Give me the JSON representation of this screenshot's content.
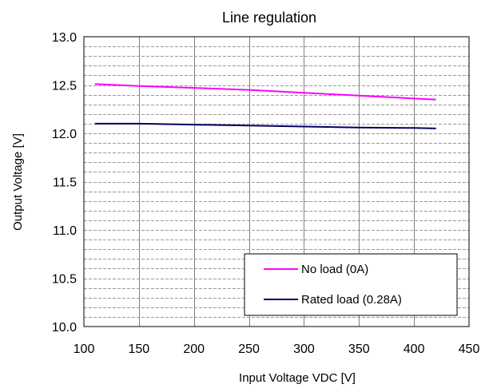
{
  "chart_data": {
    "type": "line",
    "title": "Line regulation",
    "xlabel": "Input Voltage VDC [V]",
    "ylabel": "Output Voltage [V]",
    "xlim": [
      100,
      450
    ],
    "ylim": [
      10.0,
      13.0
    ],
    "x_ticks": [
      "100",
      "150",
      "200",
      "250",
      "300",
      "350",
      "400",
      "450"
    ],
    "y_ticks": [
      "10.0",
      "10.5",
      "11.0",
      "11.5",
      "12.0",
      "12.5",
      "13.0"
    ],
    "grid": "horizontal dashed minor lines every 0.1 V, vertical solid lines every 50 V",
    "legend_position": "bottom-right",
    "series": [
      {
        "name": "No load (0A)",
        "color": "#ff00ff",
        "x": [
          110,
          150,
          200,
          250,
          300,
          350,
          400,
          420
        ],
        "y": [
          12.51,
          12.49,
          12.47,
          12.45,
          12.42,
          12.39,
          12.36,
          12.35
        ]
      },
      {
        "name": "Rated load (0.28A)",
        "color": "#000066",
        "x": [
          110,
          150,
          200,
          250,
          300,
          350,
          400,
          420
        ],
        "y": [
          12.1,
          12.1,
          12.09,
          12.08,
          12.07,
          12.06,
          12.055,
          12.05
        ]
      }
    ]
  }
}
